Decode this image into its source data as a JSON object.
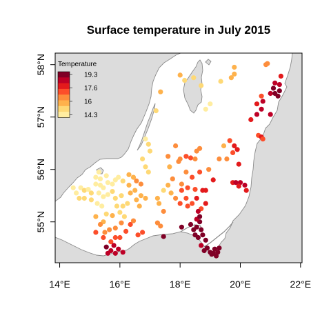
{
  "chart_data": {
    "type": "scatter",
    "title": "Surface temperature in July 2015",
    "xlim": [
      13.85,
      22.05
    ],
    "ylim": [
      54.22,
      58.22
    ],
    "x_ticks": [
      {
        "value": 14,
        "label": "14°E"
      },
      {
        "value": 16,
        "label": "16°E"
      },
      {
        "value": 18,
        "label": "18°E"
      },
      {
        "value": 20,
        "label": "20°E"
      },
      {
        "value": 22,
        "label": "22°E"
      }
    ],
    "y_ticks": [
      {
        "value": 55,
        "label": "55°N"
      },
      {
        "value": 56,
        "label": "56°N"
      },
      {
        "value": 57,
        "label": "57°N"
      },
      {
        "value": 58,
        "label": "58°N"
      }
    ],
    "legend": {
      "title": "Temperature",
      "position": "top-left",
      "labels": [
        "19.3",
        "17.6",
        "16",
        "14.3"
      ],
      "colors": [
        "#800026",
        "#BD0026",
        "#E31A1C",
        "#FC4E2A",
        "#FD8D3C",
        "#FEB24C",
        "#FED976",
        "#FFEDA0"
      ]
    },
    "colors": {
      "land": "#dcdcdc",
      "sea": "#ffffff",
      "coast": "#8a8a8a"
    },
    "series": [
      {
        "values": [
          [
            14.45,
            55.65,
            14.6
          ],
          [
            14.55,
            55.55,
            14.8
          ],
          [
            14.7,
            55.65,
            14.9
          ],
          [
            14.65,
            55.45,
            15.0
          ],
          [
            14.82,
            55.6,
            15.0
          ],
          [
            14.95,
            55.62,
            14.9
          ],
          [
            15.05,
            55.55,
            15.0
          ],
          [
            14.82,
            55.45,
            15.2
          ],
          [
            15.05,
            55.42,
            15.3
          ],
          [
            15.2,
            55.85,
            14.4
          ],
          [
            15.3,
            55.95,
            14.4
          ],
          [
            15.35,
            55.82,
            14.5
          ],
          [
            15.55,
            55.88,
            14.3
          ],
          [
            15.2,
            55.72,
            14.5
          ],
          [
            15.35,
            55.7,
            14.7
          ],
          [
            15.45,
            55.65,
            14.6
          ],
          [
            15.6,
            55.75,
            14.6
          ],
          [
            15.75,
            55.72,
            14.5
          ],
          [
            15.85,
            55.8,
            14.6
          ],
          [
            15.95,
            55.85,
            14.8
          ],
          [
            16.1,
            55.78,
            15.0
          ],
          [
            15.3,
            55.55,
            14.6
          ],
          [
            15.45,
            55.48,
            14.8
          ],
          [
            15.25,
            55.35,
            14.7
          ],
          [
            15.4,
            55.3,
            14.6
          ],
          [
            15.6,
            55.52,
            14.9
          ],
          [
            15.75,
            55.58,
            15.0
          ],
          [
            15.85,
            55.45,
            15.3
          ],
          [
            16.05,
            55.5,
            15.4
          ],
          [
            15.9,
            55.3,
            15.1
          ],
          [
            16.1,
            55.3,
            15.3
          ],
          [
            16.25,
            55.35,
            15.5
          ],
          [
            15.55,
            55.15,
            15.5
          ],
          [
            15.75,
            55.12,
            15.6
          ],
          [
            16.0,
            55.18,
            15.4
          ],
          [
            16.15,
            55.1,
            15.5
          ],
          [
            15.2,
            55.1,
            15.6
          ],
          [
            15.45,
            55.0,
            15.6
          ],
          [
            16.3,
            55.9,
            15.8
          ],
          [
            16.45,
            55.85,
            16.0
          ],
          [
            16.55,
            55.78,
            16.2
          ],
          [
            16.7,
            55.72,
            16.4
          ],
          [
            16.5,
            55.6,
            16.1
          ],
          [
            16.35,
            55.55,
            15.8
          ],
          [
            16.7,
            55.5,
            15.9
          ],
          [
            16.85,
            55.45,
            16.1
          ],
          [
            16.55,
            55.42,
            16.0
          ],
          [
            16.3,
            55.7,
            15.8
          ],
          [
            16.65,
            55.3,
            15.8
          ],
          [
            15.5,
            54.8,
            16.6
          ],
          [
            15.65,
            54.85,
            16.8
          ],
          [
            15.85,
            54.88,
            16.5
          ],
          [
            16.05,
            54.98,
            16.7
          ],
          [
            16.2,
            54.82,
            16.9
          ],
          [
            16.35,
            54.95,
            17.0
          ],
          [
            16.45,
            55.02,
            16.8
          ],
          [
            15.7,
            54.62,
            17.4
          ],
          [
            15.85,
            54.7,
            17.2
          ],
          [
            16.0,
            54.7,
            17.4
          ],
          [
            15.2,
            54.8,
            16.9
          ],
          [
            15.35,
            54.95,
            16.6
          ],
          [
            15.45,
            54.7,
            17.0
          ],
          [
            15.6,
            54.4,
            18.3
          ],
          [
            15.7,
            54.45,
            18.5
          ],
          [
            15.55,
            54.52,
            18.7
          ],
          [
            15.8,
            54.55,
            18.6
          ],
          [
            15.85,
            54.4,
            18.5
          ],
          [
            15.95,
            54.48,
            18.2
          ],
          [
            16.1,
            54.42,
            18.1
          ],
          [
            16.6,
            54.75,
            17.1
          ],
          [
            16.75,
            54.8,
            16.9
          ],
          [
            17.25,
            54.98,
            16.2
          ],
          [
            17.35,
            54.92,
            16.4
          ],
          [
            17.45,
            54.72,
            18.7
          ],
          [
            16.95,
            55.95,
            15.4
          ],
          [
            16.85,
            56.05,
            15.5
          ],
          [
            16.75,
            56.2,
            15.4
          ],
          [
            17.0,
            56.35,
            15.1
          ],
          [
            16.85,
            56.58,
            14.9
          ],
          [
            16.95,
            56.48,
            15.0
          ],
          [
            17.25,
            55.45,
            15.8
          ],
          [
            17.3,
            55.35,
            15.9
          ],
          [
            17.45,
            55.2,
            16.2
          ],
          [
            17.45,
            55.6,
            15.5
          ],
          [
            17.6,
            55.7,
            16.1
          ],
          [
            17.75,
            55.82,
            16.6
          ],
          [
            17.7,
            55.55,
            16.0
          ],
          [
            17.85,
            55.45,
            16.3
          ],
          [
            17.65,
            56.05,
            16.0
          ],
          [
            17.95,
            56.15,
            16.3
          ],
          [
            17.6,
            56.25,
            16.2
          ],
          [
            17.85,
            56.45,
            16.5
          ],
          [
            18.0,
            56.2,
            16.8
          ],
          [
            18.2,
            56.25,
            16.9
          ],
          [
            18.35,
            56.22,
            17.0
          ],
          [
            18.55,
            56.35,
            16.8
          ],
          [
            18.65,
            56.4,
            16.7
          ],
          [
            18.5,
            56.2,
            16.6
          ],
          [
            18.2,
            55.95,
            16.8
          ],
          [
            18.4,
            55.85,
            17.0
          ],
          [
            18.65,
            55.95,
            17.2
          ],
          [
            18.05,
            55.6,
            16.9
          ],
          [
            18.2,
            55.45,
            17.0
          ],
          [
            18.4,
            55.35,
            17.3
          ],
          [
            18.55,
            55.45,
            17.5
          ],
          [
            18.7,
            55.25,
            17.4
          ],
          [
            18.85,
            55.6,
            17.6
          ],
          [
            18.85,
            55.35,
            18.0
          ],
          [
            18.6,
            55.2,
            18.2
          ],
          [
            18.25,
            55.3,
            17.1
          ],
          [
            18.0,
            55.35,
            16.9
          ],
          [
            18.05,
            55.72,
            16.8
          ],
          [
            18.25,
            55.65,
            17.0
          ],
          [
            18.5,
            55.62,
            17.1
          ],
          [
            18.95,
            56.0,
            16.8
          ],
          [
            19.1,
            55.8,
            17.5
          ],
          [
            18.75,
            55.6,
            17.6
          ],
          [
            18.05,
            54.9,
            18.8
          ],
          [
            18.35,
            54.95,
            18.9
          ],
          [
            18.45,
            54.85,
            19.0
          ],
          [
            18.55,
            54.9,
            18.8
          ],
          [
            18.65,
            55.0,
            18.9
          ],
          [
            18.7,
            54.85,
            19.1
          ],
          [
            18.5,
            54.75,
            18.7
          ],
          [
            18.6,
            54.7,
            18.8
          ],
          [
            18.75,
            54.75,
            19.0
          ],
          [
            18.85,
            54.65,
            18.9
          ],
          [
            18.9,
            54.5,
            19.1
          ],
          [
            19.0,
            54.42,
            19.2
          ],
          [
            19.1,
            54.4,
            19.3
          ],
          [
            19.25,
            54.42,
            19.3
          ],
          [
            19.3,
            54.5,
            19.2
          ],
          [
            19.15,
            54.48,
            18.8
          ],
          [
            18.7,
            54.55,
            18.6
          ],
          [
            18.8,
            54.45,
            18.9
          ],
          [
            19.05,
            54.38,
            19.2
          ],
          [
            19.2,
            54.35,
            19.3
          ],
          [
            18.55,
            55.05,
            18.6
          ],
          [
            18.65,
            55.1,
            18.8
          ],
          [
            19.55,
            56.2,
            16.8
          ],
          [
            19.75,
            56.32,
            17.0
          ],
          [
            19.8,
            56.45,
            17.5
          ],
          [
            19.9,
            56.38,
            17.8
          ],
          [
            19.95,
            56.1,
            17.6
          ],
          [
            19.65,
            56.55,
            17.0
          ],
          [
            19.75,
            55.75,
            18.0
          ],
          [
            19.85,
            55.75,
            18.2
          ],
          [
            20.0,
            55.75,
            18.3
          ],
          [
            20.15,
            55.7,
            18.1
          ],
          [
            19.95,
            55.68,
            18.0
          ],
          [
            20.2,
            55.6,
            17.9
          ],
          [
            20.35,
            56.95,
            17.8
          ],
          [
            20.55,
            57.05,
            18.2
          ],
          [
            20.7,
            57.15,
            18.5
          ],
          [
            20.6,
            56.65,
            17.4
          ],
          [
            20.7,
            56.62,
            17.5
          ],
          [
            20.75,
            56.58,
            17.3
          ],
          [
            20.55,
            57.25,
            18.0
          ],
          [
            20.75,
            57.3,
            18.3
          ],
          [
            21.0,
            57.45,
            18.6
          ],
          [
            21.15,
            57.45,
            18.9
          ],
          [
            21.3,
            57.5,
            19.3
          ],
          [
            21.25,
            57.4,
            19.1
          ],
          [
            21.1,
            57.55,
            18.8
          ],
          [
            21.0,
            57.05,
            18.5
          ],
          [
            21.15,
            57.65,
            18.3
          ],
          [
            21.3,
            57.62,
            18.4
          ],
          [
            21.35,
            57.78,
            17.8
          ],
          [
            20.85,
            58.0,
            16.4
          ],
          [
            20.9,
            58.02,
            16.2
          ],
          [
            20.7,
            57.4,
            17.1
          ],
          [
            17.35,
            57.48,
            16.1
          ],
          [
            17.2,
            57.12,
            15.0
          ],
          [
            18.0,
            57.8,
            15.6
          ],
          [
            18.15,
            57.7,
            15.4
          ],
          [
            18.45,
            57.75,
            15.3
          ],
          [
            18.85,
            57.15,
            14.4
          ],
          [
            19.0,
            57.25,
            14.8
          ],
          [
            18.7,
            57.6,
            15.0
          ],
          [
            19.35,
            57.68,
            15.2
          ],
          [
            19.7,
            57.75,
            15.7
          ],
          [
            19.8,
            57.95,
            15.6
          ],
          [
            19.8,
            57.82,
            15.9
          ],
          [
            19.45,
            56.45,
            16.0
          ],
          [
            19.3,
            56.2,
            16.4
          ]
        ]
      }
    ]
  }
}
